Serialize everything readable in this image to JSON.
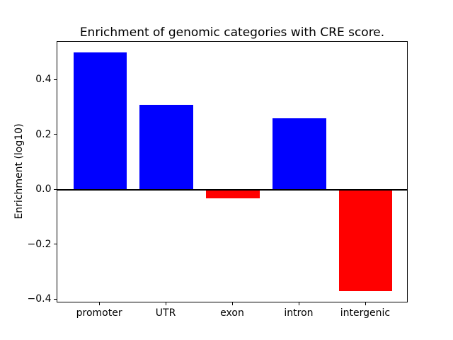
{
  "figure": {
    "background": "#ffffff"
  },
  "chart_data": {
    "type": "bar",
    "title": "Enrichment of genomic categories with CRE score.",
    "xlabel": "",
    "ylabel": "Enrichment (log10)",
    "categories": [
      "promoter",
      "UTR",
      "exon",
      "intron",
      "intergenic"
    ],
    "values": [
      0.5,
      0.31,
      -0.03,
      0.26,
      -0.37
    ],
    "bar_colors": [
      "#0000ff",
      "#0000ff",
      "#ff0000",
      "#0000ff",
      "#ff0000"
    ],
    "positive_color": "#0000ff",
    "negative_color": "#ff0000",
    "yticks": [
      0.4,
      0.2,
      0.0,
      -0.2,
      -0.4
    ],
    "ytick_labels": [
      "0.4",
      "0.2",
      "0.0",
      "−0.2",
      "−0.4"
    ],
    "ylim": [
      -0.413,
      0.539
    ],
    "xlim": [
      -0.64,
      4.64
    ],
    "bar_width": 0.8,
    "zero_line": true,
    "grid": false,
    "legend": null,
    "spine_color": "#000000",
    "text_color": "#000000"
  }
}
